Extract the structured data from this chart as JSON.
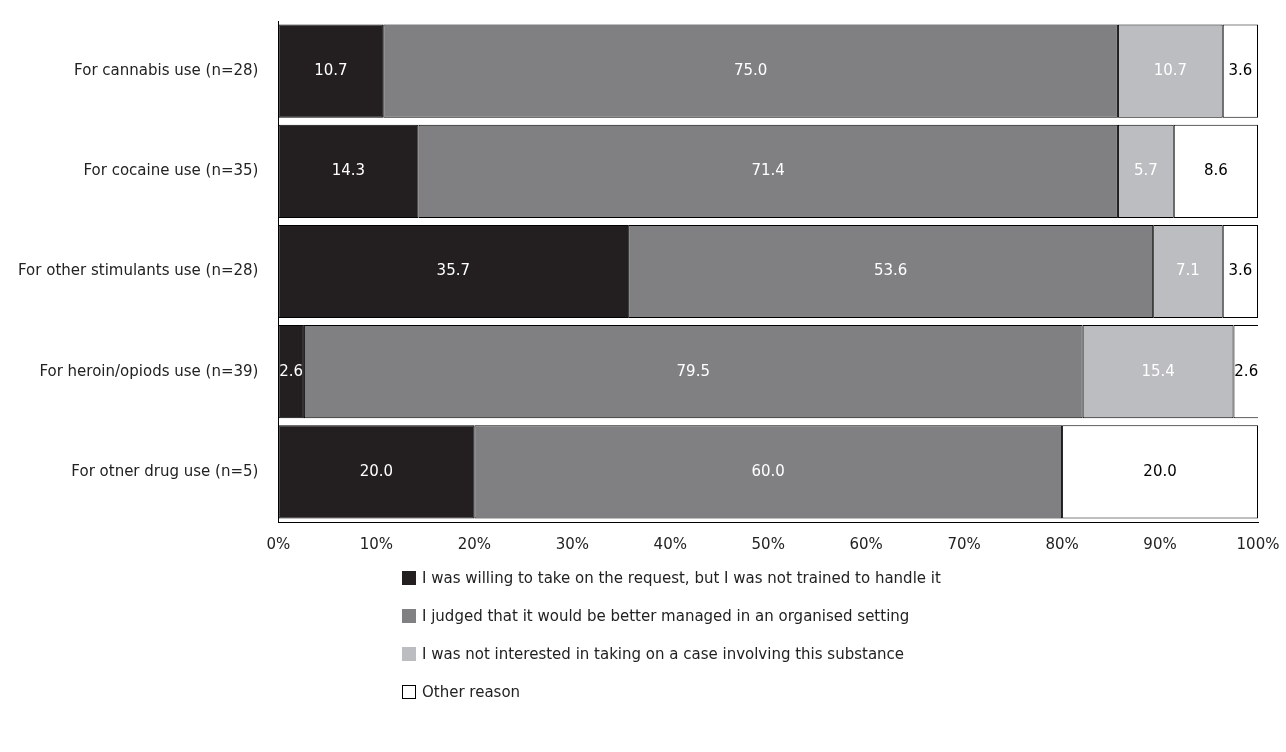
{
  "chart_data": {
    "type": "bar",
    "orientation": "horizontal",
    "stacked": true,
    "legend": "bottom",
    "grid": false,
    "categories": [
      "For cannabis use (n=28)",
      "For cocaine use (n=35)",
      "For other stimulants use (n=28)",
      "For heroin/opiods use (n=39)",
      "For otner drug use (n=5)"
    ],
    "xlim": [
      0,
      100
    ],
    "xticks": [
      {
        "value": 0,
        "label": "0%"
      },
      {
        "value": 10,
        "label": "10%"
      },
      {
        "value": 20,
        "label": "20%"
      },
      {
        "value": 30,
        "label": "30%"
      },
      {
        "value": 40,
        "label": "40%"
      },
      {
        "value": 50,
        "label": "50%"
      },
      {
        "value": 60,
        "label": "60%"
      },
      {
        "value": 70,
        "label": "70%"
      },
      {
        "value": 80,
        "label": "80%"
      },
      {
        "value": 90,
        "label": "90%"
      },
      {
        "value": 100,
        "label": "100%"
      }
    ],
    "series": [
      {
        "name": "I was willing to take on the request, but I was not trained to handle it",
        "color": "#231f20",
        "values": [
          10.7,
          14.3,
          35.7,
          2.6,
          20
        ],
        "value_labels": [
          "10.7",
          "14.3",
          "35.7",
          "2.6",
          "20.0"
        ]
      },
      {
        "name": "I judged that it would be better managed in an organised setting",
        "color": "#808083",
        "values": [
          75,
          71.4,
          53.6,
          79.5,
          60
        ],
        "value_labels": [
          "75.0",
          "71.4",
          "53.6",
          "79.5",
          "60.0"
        ]
      },
      {
        "name": "I was not interested in taking on a case involving this substance",
        "color": "#bcbdc0",
        "values": [
          10.7,
          5.7,
          7.1,
          15.4,
          null
        ],
        "value_labels": [
          "10.7",
          "5.7",
          "7.1",
          "15.4",
          null
        ]
      },
      {
        "name": "Other reason",
        "color": "#ffffff",
        "values": [
          3.6,
          8.6,
          3.6,
          2.6,
          20
        ],
        "value_labels": [
          "3.6",
          "8.6",
          "3.6",
          "2.6",
          "20.0"
        ]
      }
    ]
  }
}
